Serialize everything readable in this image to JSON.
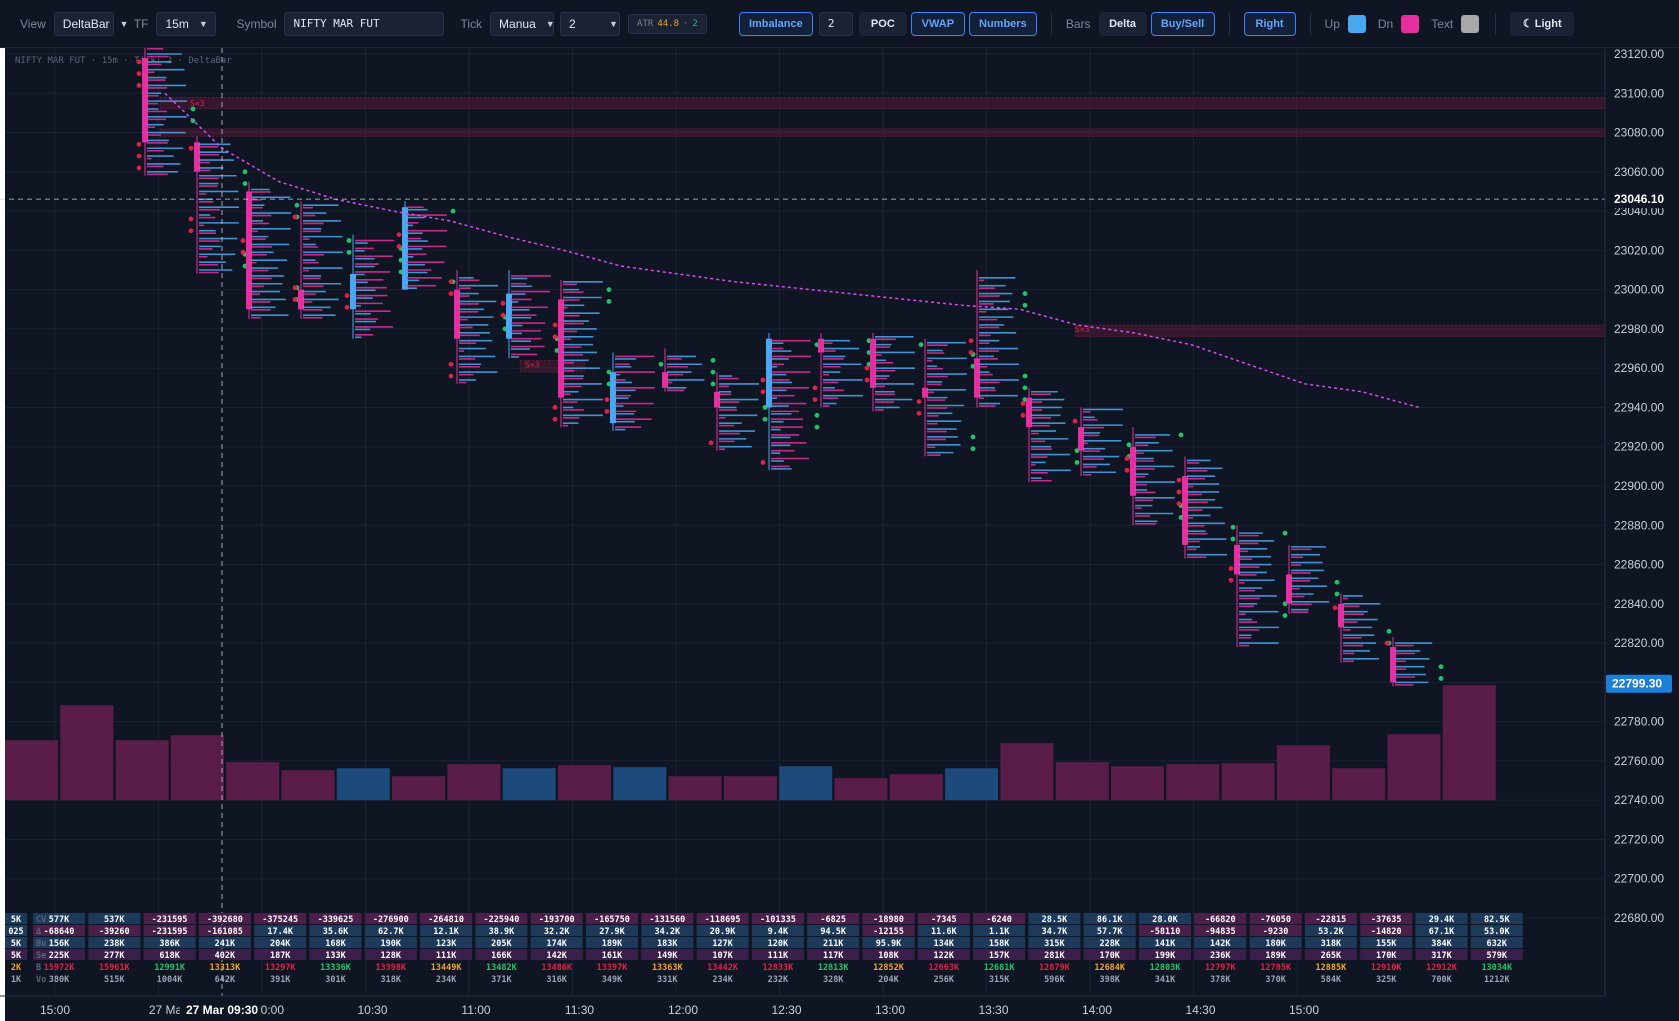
{
  "toolbar": {
    "view_label": "View",
    "view_value": "DeltaBar",
    "tf_label": "TF",
    "tf_value": "15m",
    "symbol_label": "Symbol",
    "symbol_value": "NIFTY MAR FUT",
    "tick_label": "Tick",
    "tick_mode": "Manua",
    "tick_size": "2",
    "atr_label": "ATR",
    "atr_value": "44.8",
    "atr_sep": "·",
    "atr_tick": "2",
    "imbalance_label": "Imbalance",
    "imbalance_value": "2",
    "poc_label": "POC",
    "vwap_label": "VWAP",
    "numbers_label": "Numbers",
    "bars_label": "Bars",
    "delta_label": "Delta",
    "buysell_label": "Buy/Sell",
    "right_label": "Right",
    "up_label": "Up",
    "dn_label": "Dn",
    "text_label": "Text",
    "theme_label": "Light",
    "up_color": "#4aa8f0",
    "dn_color": "#e62ea0",
    "text_color": "#a8a8a8"
  },
  "chart": {
    "watermark": "NIFTY MAR FUT · 15m · Tick: 2 · DeltaBar",
    "crosshair_price": "23046.10",
    "last_price": "22799.30",
    "crosshair_time": "27 Mar 09:30",
    "zone_label": "S×3",
    "colors": {
      "up": "#4aa8f0",
      "dn": "#e62ea0",
      "buy_imb": "#1ec46a",
      "sell_imb": "#e0204a",
      "vwap": "#d84bf0",
      "bg": "#0f1523"
    }
  },
  "chart_data": {
    "type": "footprint",
    "price_ticks": [
      "23120.00",
      "23100.00",
      "23080.00",
      "23060.00",
      "23040.00",
      "23020.00",
      "23000.00",
      "22980.00",
      "22960.00",
      "22940.00",
      "22920.00",
      "22900.00",
      "22880.00",
      "22860.00",
      "22840.00",
      "22820.00",
      "22800.00",
      "22780.00",
      "22760.00",
      "22740.00",
      "22720.00",
      "22700.00",
      "22680.00"
    ],
    "time_labels": [
      "15:00",
      "27 Ma",
      "10:00",
      "10:30",
      "11:00",
      "11:30",
      "12:00",
      "12:30",
      "13:00",
      "13:30",
      "14:00",
      "14:30",
      "15:00"
    ],
    "bars": [
      {
        "high": 23125,
        "low": 23058,
        "open": 23118,
        "close": 23075,
        "dir": "dn"
      },
      {
        "high": 23078,
        "low": 23008,
        "open": 23075,
        "close": 23060,
        "dir": "dn"
      },
      {
        "high": 23055,
        "low": 22985,
        "open": 23050,
        "close": 22990,
        "dir": "dn"
      },
      {
        "high": 23045,
        "low": 22985,
        "open": 23000,
        "close": 22990,
        "dir": "dn"
      },
      {
        "high": 23028,
        "low": 22975,
        "open": 22990,
        "close": 23008,
        "dir": "up"
      },
      {
        "high": 23045,
        "low": 23000,
        "open": 23000,
        "close": 23042,
        "dir": "up"
      },
      {
        "high": 23010,
        "low": 22952,
        "open": 23000,
        "close": 22975,
        "dir": "dn"
      },
      {
        "high": 23010,
        "low": 22965,
        "open": 22975,
        "close": 22998,
        "dir": "up"
      },
      {
        "high": 23005,
        "low": 22930,
        "open": 22995,
        "close": 22945,
        "dir": "dn"
      },
      {
        "high": 22968,
        "low": 22928,
        "open": 22932,
        "close": 22958,
        "dir": "up"
      },
      {
        "high": 22970,
        "low": 22948,
        "open": 22958,
        "close": 22950,
        "dir": "dn"
      },
      {
        "high": 22958,
        "low": 22918,
        "open": 22948,
        "close": 22940,
        "dir": "dn"
      },
      {
        "high": 22978,
        "low": 22908,
        "open": 22940,
        "close": 22975,
        "dir": "up"
      },
      {
        "high": 22978,
        "low": 22940,
        "open": 22975,
        "close": 22968,
        "dir": "dn"
      },
      {
        "high": 22978,
        "low": 22938,
        "open": 22975,
        "close": 22950,
        "dir": "dn"
      },
      {
        "high": 22975,
        "low": 22915,
        "open": 22950,
        "close": 22945,
        "dir": "dn"
      },
      {
        "high": 23010,
        "low": 22940,
        "open": 22945,
        "close": 22965,
        "dir": "dn"
      },
      {
        "high": 22950,
        "low": 22902,
        "open": 22945,
        "close": 22930,
        "dir": "dn"
      },
      {
        "high": 22940,
        "low": 22905,
        "open": 22930,
        "close": 22918,
        "dir": "dn"
      },
      {
        "high": 22930,
        "low": 22880,
        "open": 22920,
        "close": 22895,
        "dir": "dn"
      },
      {
        "high": 22915,
        "low": 22863,
        "open": 22905,
        "close": 22870,
        "dir": "dn"
      },
      {
        "high": 22880,
        "low": 22818,
        "open": 22870,
        "close": 22855,
        "dir": "dn"
      },
      {
        "high": 22870,
        "low": 22835,
        "open": 22855,
        "close": 22840,
        "dir": "dn"
      },
      {
        "high": 22845,
        "low": 22810,
        "open": 22840,
        "close": 22828,
        "dir": "dn"
      },
      {
        "high": 22823,
        "low": 22798,
        "open": 22818,
        "close": 22800,
        "dir": "dn"
      }
    ],
    "vwap": [
      23100,
      23072,
      23055,
      23046,
      23040,
      23035,
      23027,
      23020,
      23012,
      23008,
      23004,
      23001,
      22998,
      22995,
      22992,
      22990,
      22982,
      22978,
      22972,
      22962,
      22952,
      22948,
      22940
    ],
    "volume_bars": [
      {
        "v": 60,
        "dir": "dn"
      },
      {
        "v": 95,
        "dir": "dn"
      },
      {
        "v": 60,
        "dir": "dn"
      },
      {
        "v": 65,
        "dir": "dn"
      },
      {
        "v": 38,
        "dir": "dn"
      },
      {
        "v": 30,
        "dir": "dn"
      },
      {
        "v": 32,
        "dir": "up"
      },
      {
        "v": 24,
        "dir": "dn"
      },
      {
        "v": 36,
        "dir": "dn"
      },
      {
        "v": 32,
        "dir": "up"
      },
      {
        "v": 35,
        "dir": "dn"
      },
      {
        "v": 33,
        "dir": "up"
      },
      {
        "v": 24,
        "dir": "dn"
      },
      {
        "v": 24,
        "dir": "dn"
      },
      {
        "v": 34,
        "dir": "up"
      },
      {
        "v": 22,
        "dir": "dn"
      },
      {
        "v": 26,
        "dir": "dn"
      },
      {
        "v": 32,
        "dir": "up"
      },
      {
        "v": 57,
        "dir": "dn"
      },
      {
        "v": 38,
        "dir": "dn"
      },
      {
        "v": 34,
        "dir": "dn"
      },
      {
        "v": 36,
        "dir": "dn"
      },
      {
        "v": 37,
        "dir": "dn"
      },
      {
        "v": 55,
        "dir": "dn"
      },
      {
        "v": 32,
        "dir": "dn"
      },
      {
        "v": 66,
        "dir": "dn"
      },
      {
        "v": 115,
        "dir": "dn"
      }
    ],
    "table": {
      "row_labels": [
        "CV",
        "Δ",
        "Bu",
        "Se",
        "B",
        "Vo"
      ],
      "first_col": [
        "5K",
        "025",
        "5K",
        "5K",
        "2K",
        "1K"
      ],
      "second_col": [
        "577K",
        "-68640",
        "156K",
        "225K",
        "15972K",
        "380K"
      ],
      "columns": [
        [
          "537K",
          "-39260",
          "238K",
          "277K",
          "15961K",
          "515K"
        ],
        [
          "-231595",
          "-231595",
          "386K",
          "618K",
          "12991K",
          "1004K"
        ],
        [
          "-392680",
          "-161085",
          "241K",
          "402K",
          "13313K",
          "642K"
        ],
        [
          "-375245",
          "17.4K",
          "204K",
          "187K",
          "13297K",
          "391K"
        ],
        [
          "-339625",
          "35.6K",
          "168K",
          "133K",
          "13336K",
          "301K"
        ],
        [
          "-276900",
          "62.7K",
          "190K",
          "128K",
          "13398K",
          "318K"
        ],
        [
          "-264810",
          "12.1K",
          "123K",
          "111K",
          "13449K",
          "234K"
        ],
        [
          "-225940",
          "38.9K",
          "205K",
          "166K",
          "13482K",
          "371K"
        ],
        [
          "-193700",
          "32.2K",
          "174K",
          "142K",
          "13486K",
          "316K"
        ],
        [
          "-165750",
          "27.9K",
          "189K",
          "161K",
          "13397K",
          "349K"
        ],
        [
          "-131560",
          "34.2K",
          "183K",
          "149K",
          "13363K",
          "331K"
        ],
        [
          "-118695",
          "20.9K",
          "127K",
          "107K",
          "13442K",
          "234K"
        ],
        [
          "-101335",
          "9.4K",
          "120K",
          "111K",
          "12833K",
          "232K"
        ],
        [
          "-6825",
          "94.5K",
          "211K",
          "117K",
          "12813K",
          "328K"
        ],
        [
          "-18980",
          "-12155",
          "95.9K",
          "108K",
          "12852K",
          "204K"
        ],
        [
          "-7345",
          "11.6K",
          "134K",
          "122K",
          "12663K",
          "256K"
        ],
        [
          "-6240",
          "1.1K",
          "158K",
          "157K",
          "12681K",
          "315K"
        ],
        [
          "28.5K",
          "34.7K",
          "315K",
          "281K",
          "12879K",
          "596K"
        ],
        [
          "86.1K",
          "57.7K",
          "228K",
          "170K",
          "12684K",
          "398K"
        ],
        [
          "28.0K",
          "-58110",
          "141K",
          "199K",
          "12803K",
          "341K"
        ],
        [
          "-66820",
          "-94835",
          "142K",
          "236K",
          "12797K",
          "378K"
        ],
        [
          "-76050",
          "-9230",
          "180K",
          "189K",
          "12785K",
          "370K"
        ],
        [
          "-22815",
          "53.2K",
          "318K",
          "265K",
          "12885K",
          "584K"
        ],
        [
          "-37635",
          "-14820",
          "155K",
          "170K",
          "12910K",
          "325K"
        ],
        [
          "29.4K",
          "67.1K",
          "384K",
          "317K",
          "12912K",
          "700K"
        ],
        [
          "82.5K",
          "53.0K",
          "632K",
          "579K",
          "13034K",
          "1212K"
        ]
      ]
    }
  }
}
